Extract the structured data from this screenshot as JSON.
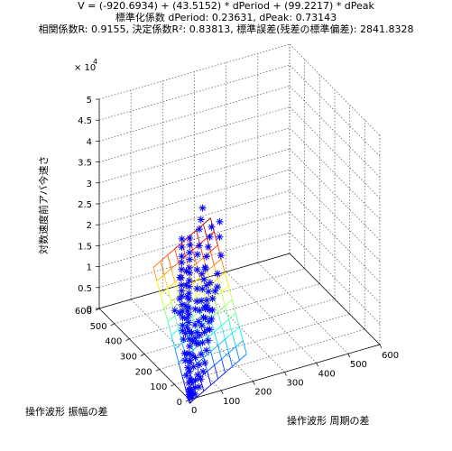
{
  "title_lines": [
    "V = (-920.6934) + (43.5152) * dPeriod + (99.2217) * dPeak",
    "標準化係数  dPeriod: 0.23631, dPeak: 0.73143",
    "相関係数R: 0.9155, 決定係数R²: 0.83813, 標準誤差(残差の標準偏差): 2841.8328"
  ],
  "chart_data": {
    "type": "scatter3d",
    "xlabel": "操作波形 周期の差",
    "ylabel": "操作波形 振幅の差",
    "zlabel": "対数速度前アバ今速さ",
    "x_ticks": [
      "0",
      "100",
      "200",
      "300",
      "400",
      "500",
      "600"
    ],
    "y_ticks": [
      "0",
      "100",
      "200",
      "300",
      "400",
      "500",
      "600"
    ],
    "z_ticks": [
      "0",
      "0.5",
      "1",
      "1.5",
      "2",
      "2.5",
      "3",
      "3.5",
      "4",
      "4.5",
      "5"
    ],
    "z_multiplier": "× 10",
    "z_exponent": "4",
    "xlim": [
      0,
      600
    ],
    "ylim": [
      0,
      600
    ],
    "zlim": [
      0,
      50000
    ],
    "grid": true,
    "marker": "*",
    "marker_color": "#0000ff",
    "regression_plane": {
      "intercept": -920.6934,
      "coef_dPeriod": 43.5152,
      "coef_dPeak": 99.2217,
      "x_range": [
        0,
        180
      ],
      "y_range": [
        0,
        240
      ],
      "colormap": "jet"
    },
    "points": [
      [
        5,
        5,
        300
      ],
      [
        10,
        8,
        600
      ],
      [
        15,
        12,
        900
      ],
      [
        20,
        5,
        700
      ],
      [
        8,
        20,
        1500
      ],
      [
        25,
        15,
        1800
      ],
      [
        12,
        30,
        2600
      ],
      [
        30,
        25,
        3100
      ],
      [
        18,
        35,
        3300
      ],
      [
        35,
        10,
        1900
      ],
      [
        40,
        30,
        3900
      ],
      [
        22,
        45,
        4700
      ],
      [
        45,
        20,
        3200
      ],
      [
        28,
        55,
        6200
      ],
      [
        50,
        40,
        5800
      ],
      [
        15,
        60,
        6800
      ],
      [
        55,
        25,
        4600
      ],
      [
        32,
        70,
        7800
      ],
      [
        60,
        50,
        7700
      ],
      [
        38,
        80,
        9000
      ],
      [
        65,
        35,
        6100
      ],
      [
        20,
        75,
        7900
      ],
      [
        42,
        90,
        10300
      ],
      [
        70,
        60,
        9900
      ],
      [
        26,
        95,
        10400
      ],
      [
        48,
        100,
        11600
      ],
      [
        75,
        45,
        8500
      ],
      [
        30,
        110,
        11800
      ],
      [
        52,
        115,
        13100
      ],
      [
        80,
        70,
        11800
      ],
      [
        35,
        120,
        12600
      ],
      [
        58,
        125,
        14500
      ],
      [
        85,
        55,
        10200
      ],
      [
        40,
        130,
        14000
      ],
      [
        62,
        135,
        15700
      ],
      [
        90,
        85,
        14400
      ],
      [
        44,
        140,
        15100
      ],
      [
        68,
        145,
        17200
      ],
      [
        95,
        65,
        12300
      ],
      [
        48,
        150,
        16200
      ],
      [
        72,
        155,
        18200
      ],
      [
        100,
        95,
        16800
      ],
      [
        52,
        160,
        17800
      ],
      [
        78,
        165,
        19300
      ],
      [
        105,
        75,
        14200
      ],
      [
        56,
        170,
        18600
      ],
      [
        82,
        175,
        20300
      ],
      [
        60,
        180,
        19500
      ],
      [
        88,
        185,
        21600
      ],
      [
        64,
        190,
        20800
      ],
      [
        92,
        195,
        22400
      ],
      [
        70,
        200,
        22300
      ],
      [
        98,
        205,
        23900
      ],
      [
        75,
        210,
        23500
      ],
      [
        102,
        215,
        25100
      ],
      [
        80,
        220,
        24500
      ],
      [
        108,
        225,
        26400
      ],
      [
        85,
        230,
        26200
      ],
      [
        112,
        235,
        27600
      ],
      [
        90,
        240,
        27700
      ],
      [
        60,
        190,
        21000
      ],
      [
        45,
        160,
        17300
      ],
      [
        110,
        180,
        22100
      ],
      [
        120,
        200,
        24800
      ],
      [
        130,
        210,
        26300
      ],
      [
        35,
        100,
        11400
      ],
      [
        25,
        70,
        7900
      ],
      [
        18,
        50,
        5400
      ],
      [
        10,
        40,
        4100
      ],
      [
        6,
        15,
        1300
      ],
      [
        12,
        10,
        1000
      ],
      [
        3,
        3,
        200
      ],
      [
        30,
        60,
        6600
      ],
      [
        55,
        140,
        16100
      ],
      [
        65,
        100,
        12800
      ],
      [
        95,
        150,
        19000
      ],
      [
        75,
        120,
        15600
      ],
      [
        85,
        130,
        16900
      ],
      [
        115,
        160,
        21700
      ],
      [
        140,
        230,
        29300
      ],
      [
        150,
        240,
        31000
      ],
      [
        160,
        250,
        33200
      ],
      [
        100,
        110,
        15900
      ],
      [
        120,
        140,
        19600
      ],
      [
        130,
        170,
        22600
      ],
      [
        50,
        85,
        9800
      ],
      [
        40,
        65,
        7300
      ],
      [
        20,
        28,
        2900
      ],
      [
        8,
        6,
        500
      ],
      [
        4,
        10,
        700
      ],
      [
        14,
        18,
        1600
      ],
      [
        36,
        48,
        5300
      ],
      [
        46,
        58,
        6900
      ],
      [
        58,
        78,
        9400
      ],
      [
        68,
        92,
        11200
      ],
      [
        78,
        104,
        13200
      ],
      [
        88,
        118,
        15100
      ],
      [
        98,
        128,
        16800
      ],
      [
        108,
        142,
        18900
      ],
      [
        118,
        152,
        20600
      ],
      [
        128,
        164,
        22500
      ],
      [
        138,
        178,
        24700
      ],
      [
        148,
        188,
        26400
      ],
      [
        158,
        198,
        28200
      ],
      [
        168,
        208,
        30000
      ],
      [
        145,
        120,
        19400
      ],
      [
        155,
        140,
        21600
      ],
      [
        175,
        160,
        24800
      ],
      [
        185,
        190,
        27900
      ],
      [
        195,
        210,
        30600
      ],
      [
        60,
        90,
        10100
      ],
      [
        45,
        110,
        12200
      ],
      [
        35,
        140,
        14800
      ],
      [
        25,
        150,
        15300
      ],
      [
        70,
        170,
        19600
      ],
      [
        80,
        190,
        22100
      ],
      [
        65,
        150,
        17700
      ],
      [
        55,
        130,
        15200
      ],
      [
        48,
        120,
        14000
      ],
      [
        52,
        95,
        11300
      ],
      [
        62,
        75,
        9300
      ],
      [
        72,
        85,
        10700
      ],
      [
        84,
        95,
        12400
      ],
      [
        94,
        105,
        13800
      ],
      [
        104,
        115,
        15300
      ],
      [
        114,
        125,
        16700
      ],
      [
        124,
        135,
        18200
      ],
      [
        134,
        145,
        19700
      ],
      [
        110,
        100,
        15400
      ],
      [
        125,
        110,
        17400
      ],
      [
        135,
        115,
        18800
      ],
      [
        90,
        70,
        12200
      ],
      [
        100,
        80,
        13500
      ],
      [
        115,
        90,
        15600
      ]
    ]
  }
}
